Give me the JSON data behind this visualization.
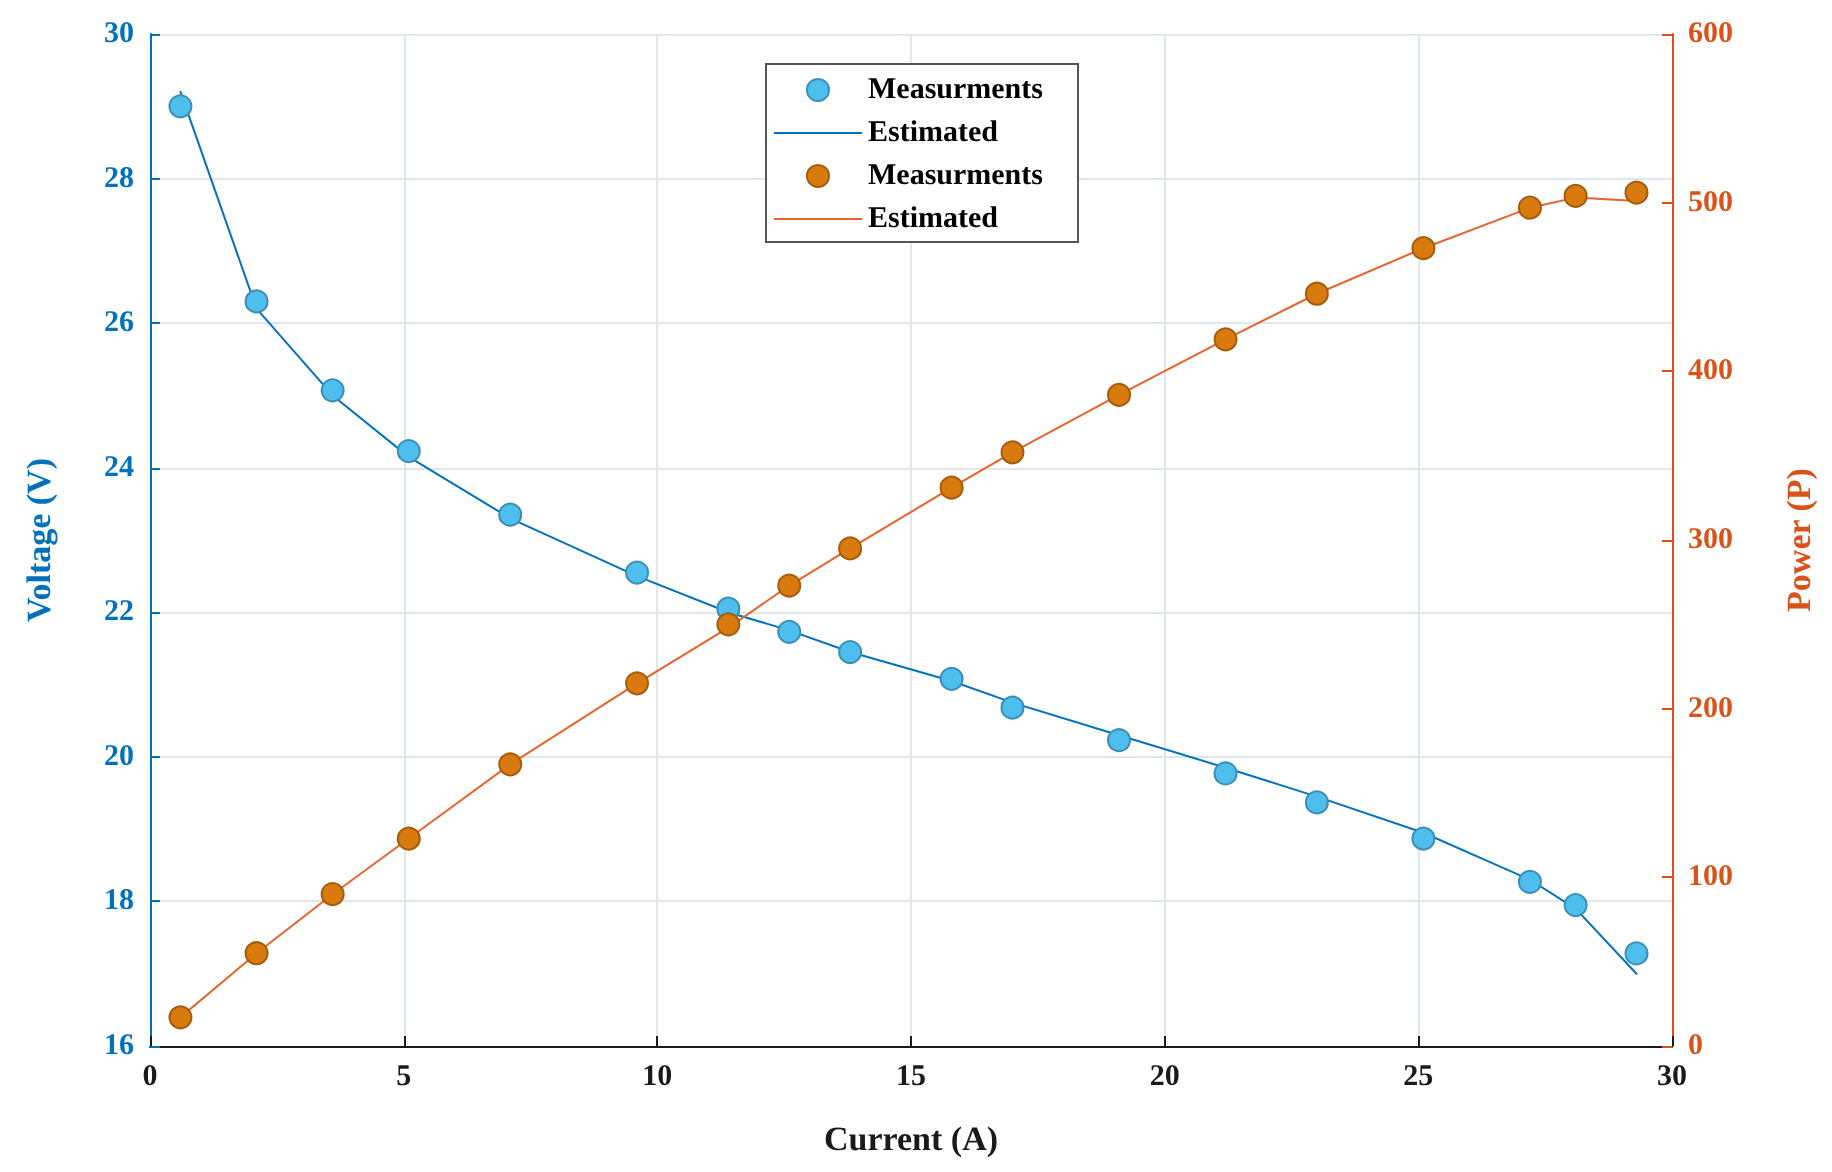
{
  "chart_data": {
    "type": "scatter",
    "xlabel": "Current (A)",
    "ylabel": "Voltage (V)",
    "y2label": "Power (P)",
    "xlim": [
      0,
      30
    ],
    "xticks": [
      0,
      5,
      10,
      15,
      20,
      25,
      30
    ],
    "ylim": [
      16,
      30
    ],
    "yticks": [
      16,
      18,
      20,
      22,
      24,
      26,
      28,
      30
    ],
    "y2lim": [
      0,
      600
    ],
    "y2ticks": [
      0,
      100,
      200,
      300,
      400,
      500,
      600
    ],
    "x": [
      0.6,
      2.1,
      3.6,
      5.1,
      7.1,
      9.6,
      11.4,
      12.6,
      13.8,
      15.8,
      17.0,
      19.1,
      21.2,
      23.0,
      25.1,
      27.2,
      28.1,
      29.3
    ],
    "grid": true,
    "legend": "top",
    "series": [
      {
        "name": "Measurments",
        "type": "scatter",
        "marker": "circle",
        "color": "#4dbeee",
        "values": [
          29.0,
          26.3,
          25.07,
          24.23,
          23.35,
          22.55,
          22.05,
          21.73,
          21.45,
          21.08,
          20.68,
          20.23,
          19.77,
          19.37,
          18.87,
          18.27,
          17.95,
          17.28
        ]
      },
      {
        "name": "Estimated",
        "type": "line",
        "color": "#0072bd",
        "values": [
          29.2,
          26.2,
          25.0,
          24.15,
          23.3,
          22.5,
          22.0,
          21.75,
          21.45,
          21.05,
          20.75,
          20.3,
          19.85,
          19.45,
          18.95,
          18.3,
          17.9,
          17.0
        ]
      },
      {
        "name": "Measurments",
        "type": "scatter",
        "marker": "circle",
        "color": "#d97a0f",
        "axis": "y2",
        "values": [
          17,
          55,
          90,
          123,
          167,
          215,
          250,
          273,
          295,
          331,
          352,
          386,
          419,
          446,
          473,
          497,
          504,
          506
        ]
      },
      {
        "name": "Estimated",
        "type": "line",
        "color": "#e8622a",
        "axis": "y2",
        "values": [
          17,
          55,
          90,
          123,
          167,
          215,
          248,
          273,
          295,
          331,
          352,
          386,
          419,
          446,
          473,
          497,
          503,
          501
        ]
      }
    ]
  }
}
